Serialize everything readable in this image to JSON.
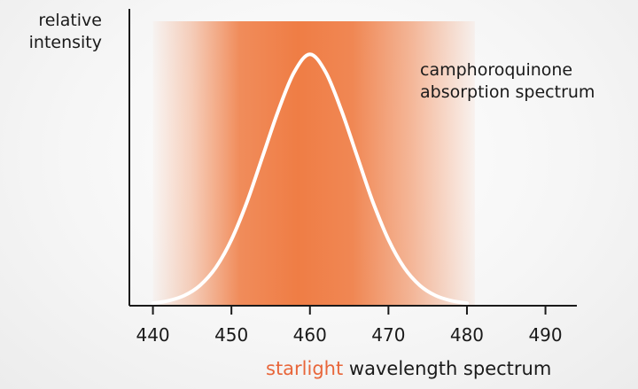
{
  "chart_data": {
    "type": "line",
    "x": [
      440,
      442,
      444,
      446,
      448,
      450,
      452,
      454,
      456,
      458,
      460,
      462,
      464,
      466,
      468,
      470,
      472,
      474,
      476,
      478,
      480
    ],
    "series": [
      {
        "name": "camphoroquinone absorption spectrum",
        "values": [
          0.01,
          0.02,
          0.04,
          0.08,
          0.15,
          0.26,
          0.41,
          0.59,
          0.77,
          0.92,
          0.99,
          0.92,
          0.77,
          0.59,
          0.41,
          0.26,
          0.15,
          0.08,
          0.04,
          0.02,
          0.01
        ]
      }
    ],
    "band": {
      "name": "starlight",
      "range": [
        440,
        481
      ]
    },
    "xlim": [
      437,
      494
    ],
    "ylim": [
      0,
      1.05
    ],
    "xticks": [
      "440",
      "450",
      "460",
      "470",
      "480",
      "490"
    ],
    "ylabel_lines": [
      "relative",
      "intensity"
    ],
    "xlabel": {
      "accent": "starlight",
      "rest": "wavelength spectrum"
    },
    "annotation_lines": [
      "camphoroquinone",
      "absorption spectrum"
    ],
    "grid": false,
    "colors": {
      "band": "#ef7d45",
      "curve": "#ffffff",
      "axis": "#1a1a1a",
      "accent": "#e8663a",
      "text": "#1a1a1a"
    }
  }
}
